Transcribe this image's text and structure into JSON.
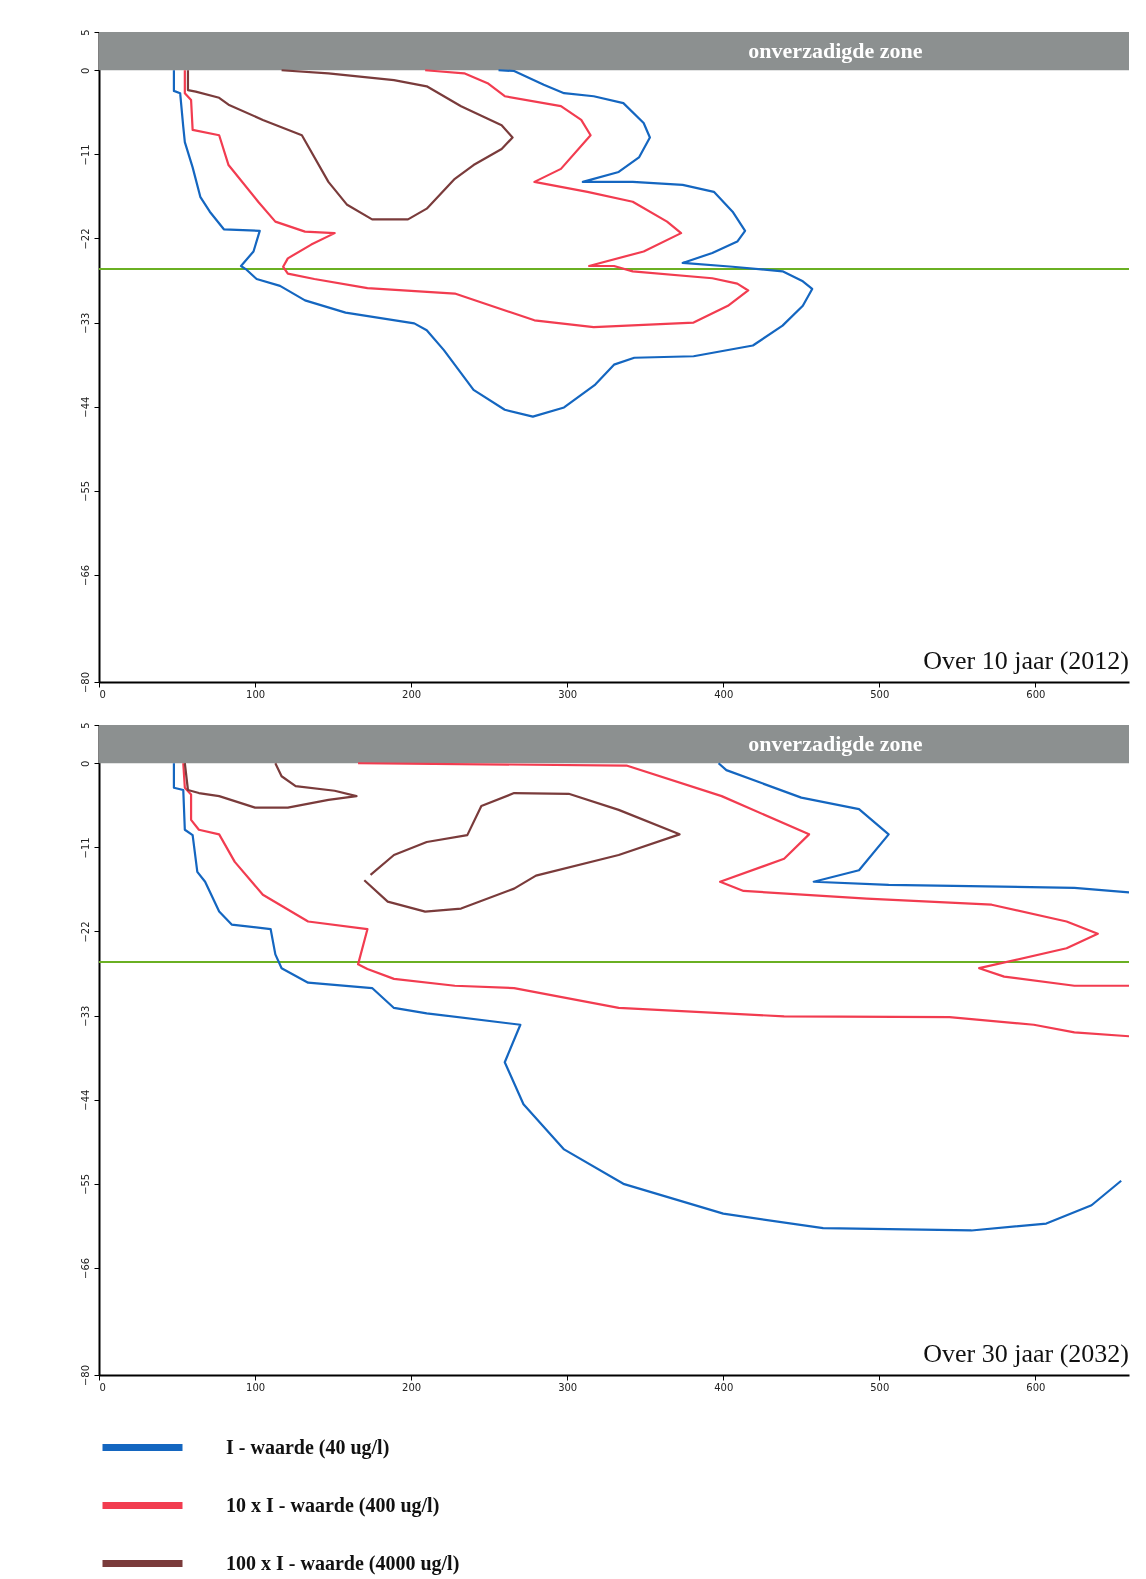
{
  "chart_data": [
    {
      "type": "line",
      "xlim": [
        0,
        660
      ],
      "ylim": [
        -80,
        5
      ],
      "xticks": [
        0,
        100,
        200,
        300,
        400,
        500,
        600
      ],
      "yticks": [
        5,
        0,
        -11,
        -22,
        -33,
        -44,
        -55,
        -66,
        -80
      ],
      "grid": false,
      "legend": false,
      "bands": [
        {
          "axis": "y",
          "from": 0,
          "to": 5,
          "label": "onverzadigde zone",
          "color": "#8c9090"
        }
      ],
      "ref_lines": [
        {
          "axis": "y",
          "value": -26,
          "color": "#6ab023"
        }
      ],
      "annotations": [
        "Over 10 jaar (2012)"
      ],
      "series": [
        {
          "color": "#1466c0",
          "x": [
            48,
            48,
            52,
            54,
            55,
            60,
            65,
            71,
            80,
            103,
            99,
            91,
            94,
            101,
            116,
            132,
            158,
            202,
            210,
            221,
            240,
            260,
            278,
            298,
            318,
            330,
            343,
            381,
            419,
            438,
            451,
            457,
            451,
            438,
            406,
            374,
            393,
            409,
            414,
            406,
            394,
            374,
            342,
            310,
            333,
            346,
            353,
            349,
            336,
            317,
            298,
            285,
            266,
            256
          ],
          "values": [
            0,
            -2.7,
            -3,
            -7.4,
            -9.4,
            -12.7,
            -16.6,
            -18.5,
            -20.8,
            -21,
            -23.7,
            -25.6,
            -26,
            -27.3,
            -28.2,
            -30.1,
            -31.7,
            -33.1,
            -34,
            -36.6,
            -41.8,
            -44.4,
            -45.3,
            -44.1,
            -41.1,
            -38.5,
            -37.6,
            -37.4,
            -36,
            -33.4,
            -30.8,
            -28.6,
            -27.6,
            -26.3,
            -25.7,
            -25.2,
            -23.9,
            -22.4,
            -21,
            -18.5,
            -15.9,
            -15,
            -14.6,
            -14.6,
            -13.3,
            -11.4,
            -8.8,
            -6.9,
            -4.3,
            -3.4,
            -3,
            -1.9,
            -0.1,
            0
          ]
        },
        {
          "color": "#f23c50",
          "x": [
            55,
            55,
            59,
            60,
            77,
            83,
            102,
            113,
            132,
            151,
            136,
            121,
            118,
            121,
            138,
            172,
            228,
            279,
            317,
            381,
            403,
            416,
            409,
            393,
            342,
            330,
            314,
            349,
            373,
            364,
            342,
            313,
            279,
            296,
            315,
            309,
            296,
            260,
            249,
            234,
            215,
            209
          ],
          "values": [
            0,
            -3,
            -3.9,
            -7.8,
            -8.5,
            -12.4,
            -17.2,
            -19.8,
            -21.1,
            -21.3,
            -22.8,
            -24.6,
            -25.7,
            -26.6,
            -27.3,
            -28.5,
            -29.2,
            -32.7,
            -33.6,
            -33,
            -30.8,
            -28.8,
            -27.9,
            -27.2,
            -26.3,
            -25.6,
            -25.6,
            -23.7,
            -21.3,
            -19.8,
            -17.2,
            -15.9,
            -14.6,
            -12.9,
            -8.5,
            -6.5,
            -4.7,
            -3.4,
            -1.7,
            -0.4,
            -0.1,
            0
          ]
        },
        {
          "color": "#7a3b3b",
          "x": [
            57,
            57,
            62,
            77,
            83,
            105,
            130,
            147,
            159,
            175,
            198,
            210,
            228,
            240,
            258,
            265,
            258,
            232,
            210,
            189,
            147,
            117
          ],
          "values": [
            0,
            -2.6,
            -2.8,
            -3.6,
            -4.5,
            -6.5,
            -8.5,
            -14.6,
            -17.6,
            -19.5,
            -19.5,
            -18.1,
            -14.2,
            -12.4,
            -10.3,
            -8.8,
            -7.2,
            -4.7,
            -2.1,
            -1.3,
            -0.4,
            0
          ]
        }
      ]
    },
    {
      "type": "line",
      "xlim": [
        0,
        660
      ],
      "ylim": [
        -80,
        5
      ],
      "xticks": [
        0,
        100,
        200,
        300,
        400,
        500,
        600
      ],
      "yticks": [
        5,
        0,
        -11,
        -22,
        -33,
        -44,
        -55,
        -66,
        -80
      ],
      "grid": false,
      "legend": "bottom",
      "bands": [
        {
          "axis": "y",
          "from": 0,
          "to": 5,
          "label": "onverzadigde zone",
          "color": "#8c9090"
        }
      ],
      "ref_lines": [
        {
          "axis": "y",
          "value": -26,
          "color": "#6ab023"
        }
      ],
      "annotations": [
        "Over 30 jaar (2032)"
      ],
      "series": [
        {
          "name": "I - waarde (40 ug/l)",
          "color": "#1466c0",
          "x": [
            48,
            48,
            54,
            55,
            60,
            63,
            68,
            77,
            85,
            110,
            113,
            117,
            134,
            175,
            189,
            210,
            270,
            260,
            272,
            298,
            336,
            400,
            464,
            559,
            607,
            636,
            655
          ],
          "values": [
            0,
            -3.2,
            -3.5,
            -8.7,
            -9.4,
            -14.2,
            -15.5,
            -19.4,
            -21.1,
            -21.7,
            -25,
            -26.8,
            -28.7,
            -29.4,
            -32,
            -32.7,
            -34.2,
            -39.1,
            -44.6,
            -50.5,
            -55,
            -58.9,
            -60.8,
            -61.1,
            -60.2,
            -57.8,
            -54.6
          ]
        },
        {
          "name": "10 x I - waarde (400 ug/l)",
          "color": "#f23c50",
          "x": [
            54,
            55,
            59,
            59,
            64,
            77,
            87,
            105,
            134,
            172,
            166,
            172,
            189,
            228,
            266,
            333,
            439,
            545,
            599,
            625,
            660
          ],
          "values": [
            0,
            -3.2,
            -4.1,
            -7.4,
            -8.7,
            -9.3,
            -12.9,
            -17.2,
            -20.7,
            -21.7,
            -26.3,
            -26.9,
            -28.2,
            -29.1,
            -29.4,
            -32,
            -33.1,
            -33.2,
            -34.2,
            -35.2,
            -35.7
          ]
        },
        {
          "name": "100 x I - waarde (4000 ug/l)",
          "color": "#7a3b3b",
          "x": [
            55,
            57,
            64,
            77,
            100,
            121,
            147,
            165,
            151,
            126,
            117,
            113
          ],
          "values": [
            0,
            -3.5,
            -3.9,
            -4.3,
            -5.8,
            -5.8,
            -4.8,
            -4.3,
            -3.6,
            -3,
            -1.7,
            0
          ]
        },
        {
          "color": "#1466c0",
          "x": [
            397,
            402,
            450,
            487,
            506,
            487,
            458,
            506,
            625,
            660
          ],
          "values": [
            0,
            -0.9,
            -4.5,
            -6,
            -9.3,
            -14,
            -15.5,
            -15.9,
            -16.3,
            -16.9
          ]
        },
        {
          "color": "#f23c50",
          "x": [
            166,
            338,
            399,
            455,
            439,
            398,
            413,
            492,
            572,
            620,
            640,
            620,
            564,
            580,
            625,
            660
          ],
          "values": [
            0,
            -0.3,
            -4.3,
            -9.3,
            -12.5,
            -15.5,
            -16.7,
            -17.7,
            -18.5,
            -20.7,
            -22.3,
            -24.2,
            -26.8,
            -27.9,
            -29.1,
            -29.1
          ]
        },
        {
          "color": "#7a3b3b",
          "x": [
            170,
            185,
            209,
            232,
            266,
            280,
            333,
            372,
            333,
            301,
            266,
            245,
            236,
            210,
            189,
            174
          ],
          "values": [
            -15.3,
            -18.1,
            -19.4,
            -19,
            -16.4,
            -14.7,
            -12,
            -9.3,
            -6.1,
            -4,
            -3.9,
            -5.6,
            -9.4,
            -10.3,
            -12,
            -14.6
          ]
        }
      ]
    }
  ]
}
